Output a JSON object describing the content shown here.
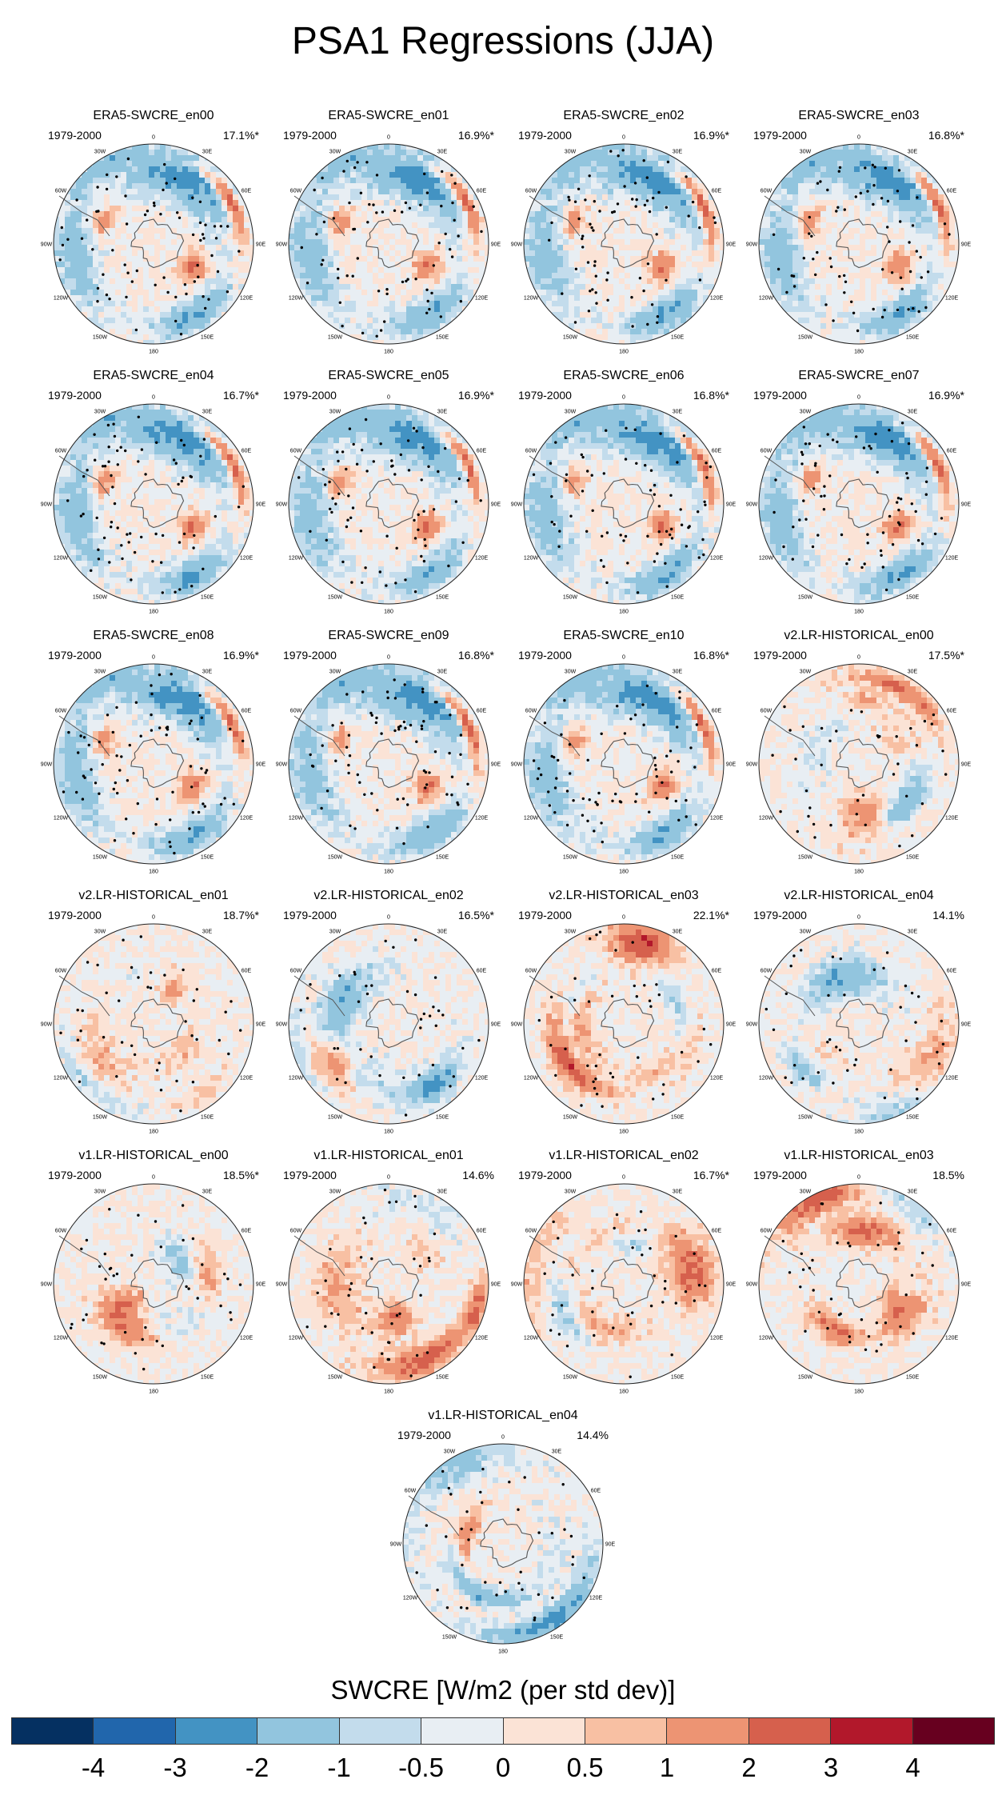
{
  "title": "PSA1 Regressions (JJA)",
  "chart_data": {
    "type": "polar-map-panels",
    "projection": "south polar stereographic",
    "variable": "SWCRE",
    "colorbar_label": "SWCRE [W/m2 (per std dev)]",
    "colorbar_levels": [
      "-4",
      "-3",
      "-2",
      "-1",
      "-0.5",
      "0",
      "0.5",
      "1",
      "2",
      "3",
      "4"
    ],
    "colorbar_colors": [
      "#053061",
      "#2166ac",
      "#4393c3",
      "#92c5de",
      "#c3dcec",
      "#e8eef3",
      "#fbe3d6",
      "#f8c0a3",
      "#ed9473",
      "#d6604d",
      "#b2182b",
      "#67001f"
    ],
    "longitude_labels": [
      "0",
      "30E",
      "60E",
      "90E",
      "120E",
      "150E",
      "180",
      "150W",
      "120W",
      "90W",
      "60W",
      "30W"
    ],
    "panels": [
      {
        "name": "ERA5-SWCRE_en00",
        "period": "1979-2000",
        "variance": "17.1%*",
        "pattern": "era5"
      },
      {
        "name": "ERA5-SWCRE_en01",
        "period": "1979-2000",
        "variance": "16.9%*",
        "pattern": "era5"
      },
      {
        "name": "ERA5-SWCRE_en02",
        "period": "1979-2000",
        "variance": "16.9%*",
        "pattern": "era5"
      },
      {
        "name": "ERA5-SWCRE_en03",
        "period": "1979-2000",
        "variance": "16.8%*",
        "pattern": "era5"
      },
      {
        "name": "ERA5-SWCRE_en04",
        "period": "1979-2000",
        "variance": "16.7%*",
        "pattern": "era5"
      },
      {
        "name": "ERA5-SWCRE_en05",
        "period": "1979-2000",
        "variance": "16.9%*",
        "pattern": "era5"
      },
      {
        "name": "ERA5-SWCRE_en06",
        "period": "1979-2000",
        "variance": "16.8%*",
        "pattern": "era5"
      },
      {
        "name": "ERA5-SWCRE_en07",
        "period": "1979-2000",
        "variance": "16.9%*",
        "pattern": "era5"
      },
      {
        "name": "ERA5-SWCRE_en08",
        "period": "1979-2000",
        "variance": "16.9%*",
        "pattern": "era5"
      },
      {
        "name": "ERA5-SWCRE_en09",
        "period": "1979-2000",
        "variance": "16.8%*",
        "pattern": "era5"
      },
      {
        "name": "ERA5-SWCRE_en10",
        "period": "1979-2000",
        "variance": "16.8%*",
        "pattern": "era5"
      },
      {
        "name": "v2.LR-HISTORICAL_en00",
        "period": "1979-2000",
        "variance": "17.5%*",
        "pattern": "v2a"
      },
      {
        "name": "v2.LR-HISTORICAL_en01",
        "period": "1979-2000",
        "variance": "18.7%*",
        "pattern": "v2b"
      },
      {
        "name": "v2.LR-HISTORICAL_en02",
        "period": "1979-2000",
        "variance": "16.5%*",
        "pattern": "v2c"
      },
      {
        "name": "v2.LR-HISTORICAL_en03",
        "period": "1979-2000",
        "variance": "22.1%*",
        "pattern": "v2d"
      },
      {
        "name": "v2.LR-HISTORICAL_en04",
        "period": "1979-2000",
        "variance": "14.1%",
        "pattern": "v2e"
      },
      {
        "name": "v1.LR-HISTORICAL_en00",
        "period": "1979-2000",
        "variance": "18.5%*",
        "pattern": "v1a"
      },
      {
        "name": "v1.LR-HISTORICAL_en01",
        "period": "1979-2000",
        "variance": "14.6%",
        "pattern": "v1b"
      },
      {
        "name": "v1.LR-HISTORICAL_en02",
        "period": "1979-2000",
        "variance": "16.7%*",
        "pattern": "v1c"
      },
      {
        "name": "v1.LR-HISTORICAL_en03",
        "period": "1979-2000",
        "variance": "18.5%",
        "pattern": "v1d"
      },
      {
        "name": "v1.LR-HISTORICAL_en04",
        "period": "1979-2000",
        "variance": "14.4%",
        "pattern": "v1e"
      }
    ]
  }
}
